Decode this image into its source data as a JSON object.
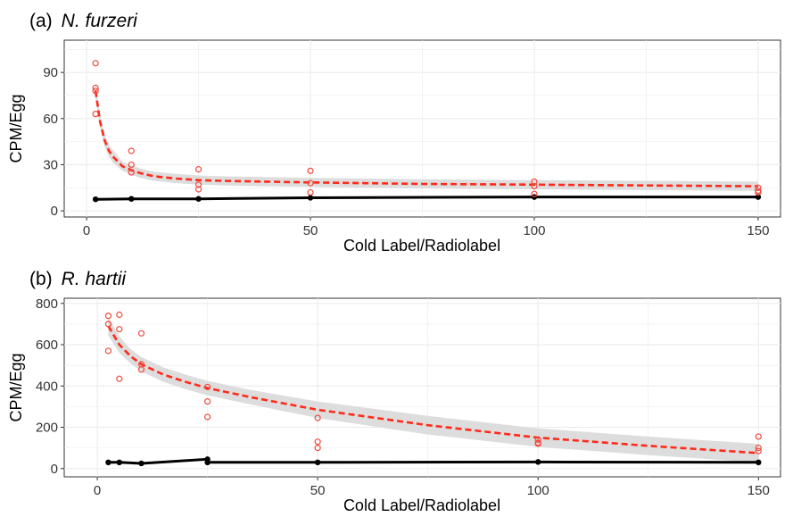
{
  "colors": {
    "observed_points": "#f04a3e",
    "fit_line": "#ff2a1a",
    "confidence_band": "#d9d9d9",
    "control": "#000000",
    "panel_border": "#333333",
    "grid": "#ebebeb"
  },
  "chart_data": [
    {
      "type": "scatter",
      "panel_label": "(a)",
      "species": "N. furzeri",
      "xlabel": "Cold Label/Radiolabel",
      "ylabel": "CPM/Egg",
      "xlim": [
        -5,
        155
      ],
      "ylim": [
        -4,
        111
      ],
      "x_ticks": [
        0,
        50,
        100,
        150
      ],
      "y_ticks": [
        0,
        30,
        60,
        90
      ],
      "grid": true,
      "legend": "none",
      "series": [
        {
          "kind": "points",
          "x": [
            2,
            2,
            2,
            2,
            10,
            10,
            10,
            25,
            25,
            25,
            50,
            50,
            50,
            100,
            100,
            100,
            150,
            150,
            150
          ],
          "y": [
            96,
            80,
            78,
            63,
            39,
            30,
            25,
            27,
            17,
            14,
            26,
            18,
            12,
            19,
            16,
            11,
            15,
            13,
            12
          ]
        },
        {
          "kind": "fit",
          "x": [
            2,
            3,
            4,
            5,
            6,
            8,
            10,
            12,
            15,
            20,
            25,
            30,
            40,
            50,
            75,
            100,
            125,
            150
          ],
          "y": [
            78,
            58,
            46,
            39,
            35,
            29,
            26.5,
            24.5,
            22.5,
            21,
            20,
            19.5,
            19,
            18.5,
            17.5,
            17,
            16.5,
            16
          ],
          "ci_low": [
            73,
            54,
            42,
            35,
            31,
            26,
            23.5,
            21.5,
            19.5,
            18,
            17,
            16.5,
            16,
            15.5,
            14.5,
            14,
            13.5,
            13
          ],
          "ci_high": [
            83,
            62,
            50,
            43,
            39,
            32,
            29.5,
            27.5,
            25.5,
            24,
            23,
            22.5,
            22,
            21.5,
            20.5,
            20,
            19.5,
            19
          ]
        },
        {
          "kind": "control",
          "x": [
            2,
            10,
            25,
            50,
            100,
            150
          ],
          "y": [
            7.5,
            7.8,
            7.8,
            8.5,
            9,
            9
          ]
        }
      ]
    },
    {
      "type": "scatter",
      "panel_label": "(b)",
      "species": "R. hartii",
      "xlabel": "Cold Label/Radiolabel",
      "ylabel": "CPM/Egg",
      "xlim": [
        -7.5,
        155
      ],
      "ylim": [
        -40,
        825
      ],
      "x_ticks": [
        0,
        50,
        100,
        150
      ],
      "y_ticks": [
        0,
        200,
        400,
        600,
        800
      ],
      "grid": true,
      "legend": "none",
      "series": [
        {
          "kind": "points",
          "x": [
            2.5,
            2.5,
            2.5,
            5,
            5,
            5,
            10,
            10,
            10,
            25,
            25,
            25,
            50,
            50,
            50,
            100,
            100,
            100,
            150,
            150,
            150
          ],
          "y": [
            740,
            700,
            570,
            745,
            675,
            435,
            655,
            505,
            480,
            395,
            325,
            250,
            245,
            130,
            100,
            140,
            125,
            120,
            155,
            100,
            85
          ]
        },
        {
          "kind": "fit",
          "x": [
            2.5,
            5,
            7.5,
            10,
            15,
            20,
            25,
            35,
            50,
            75,
            100,
            125,
            150
          ],
          "y": [
            690,
            600,
            545,
            505,
            455,
            420,
            390,
            345,
            285,
            210,
            150,
            110,
            75
          ],
          "ci_low": [
            645,
            560,
            510,
            470,
            420,
            385,
            355,
            310,
            245,
            165,
            105,
            65,
            30
          ],
          "ci_high": [
            735,
            640,
            580,
            540,
            490,
            455,
            425,
            380,
            325,
            255,
            195,
            155,
            120
          ]
        },
        {
          "kind": "control",
          "x": [
            2.5,
            5,
            10,
            25,
            25,
            50,
            100,
            150
          ],
          "y": [
            30,
            30,
            25,
            45,
            30,
            30,
            32,
            30
          ]
        }
      ]
    }
  ]
}
